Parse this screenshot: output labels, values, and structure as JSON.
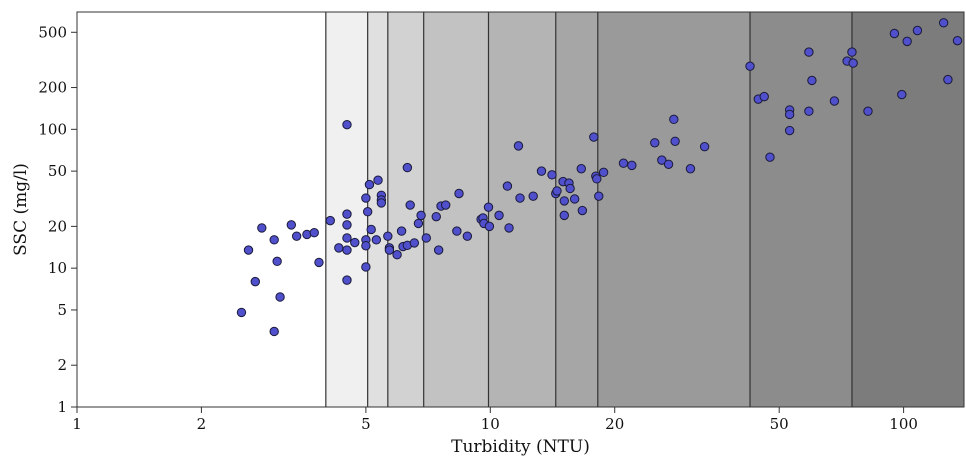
{
  "chart_data": {
    "type": "scatter",
    "title": "",
    "xlabel": "Turbidity (NTU)",
    "ylabel": "SSC (mg/l)",
    "x_scale": "log",
    "y_scale": "log",
    "xlim": [
      1,
      140
    ],
    "ylim": [
      1,
      700
    ],
    "x_ticks": [
      1,
      2,
      5,
      10,
      20,
      50,
      100
    ],
    "x_tick_labels": [
      "1",
      "2",
      "5",
      "10",
      "20",
      "50",
      "100"
    ],
    "y_ticks": [
      1,
      2,
      5,
      10,
      20,
      50,
      100,
      200,
      500
    ],
    "y_tick_labels": [
      "1",
      "2",
      "5",
      "10",
      "20",
      "50",
      "100",
      "200",
      "500"
    ],
    "grid": false,
    "legend": "none",
    "point_color": "#5050cc",
    "point_edge_color": "#1a1a3a",
    "bands": [
      {
        "from": 4.0,
        "to": 5.05,
        "color": "#f0f0f0"
      },
      {
        "from": 5.05,
        "to": 5.65,
        "color": "#e0e0e0"
      },
      {
        "from": 5.65,
        "to": 6.9,
        "color": "#d2d2d2"
      },
      {
        "from": 6.9,
        "to": 9.9,
        "color": "#c2c2c2"
      },
      {
        "from": 9.9,
        "to": 14.4,
        "color": "#b4b4b4"
      },
      {
        "from": 14.4,
        "to": 18.2,
        "color": "#a6a6a6"
      },
      {
        "from": 18.2,
        "to": 42.5,
        "color": "#9a9a9a"
      },
      {
        "from": 42.5,
        "to": 75,
        "color": "#8c8c8c"
      },
      {
        "from": 75,
        "to": 140,
        "color": "#7c7c7c"
      }
    ],
    "band_boundaries": [
      4.0,
      5.05,
      5.65,
      6.9,
      9.9,
      14.4,
      18.2,
      42.5,
      75
    ],
    "points": [
      [
        2.5,
        4.8
      ],
      [
        2.6,
        13.5
      ],
      [
        2.7,
        8
      ],
      [
        2.8,
        19.5
      ],
      [
        3.0,
        16
      ],
      [
        3.0,
        3.5
      ],
      [
        3.05,
        11.2
      ],
      [
        3.1,
        6.2
      ],
      [
        3.3,
        20.5
      ],
      [
        3.4,
        17
      ],
      [
        3.6,
        17.5
      ],
      [
        3.75,
        18
      ],
      [
        3.85,
        11
      ],
      [
        4.1,
        22
      ],
      [
        4.3,
        14
      ],
      [
        4.5,
        24.5
      ],
      [
        4.5,
        20.5
      ],
      [
        4.5,
        16.5
      ],
      [
        4.5,
        13.5
      ],
      [
        4.5,
        8.2
      ],
      [
        4.5,
        108
      ],
      [
        4.7,
        15.3
      ],
      [
        5.0,
        32
      ],
      [
        5.0,
        16
      ],
      [
        5.0,
        14.5
      ],
      [
        5.0,
        10.2
      ],
      [
        5.05,
        25.5
      ],
      [
        5.1,
        40
      ],
      [
        5.15,
        19
      ],
      [
        5.3,
        16
      ],
      [
        5.35,
        43
      ],
      [
        5.45,
        33.5
      ],
      [
        5.45,
        31
      ],
      [
        5.45,
        29.5
      ],
      [
        5.65,
        17
      ],
      [
        5.7,
        14
      ],
      [
        5.7,
        13.5
      ],
      [
        5.95,
        12.5
      ],
      [
        6.1,
        18.5
      ],
      [
        6.15,
        14.3
      ],
      [
        6.3,
        53
      ],
      [
        6.3,
        14.6
      ],
      [
        6.4,
        28.5
      ],
      [
        6.55,
        15.2
      ],
      [
        6.7,
        21
      ],
      [
        6.8,
        24
      ],
      [
        7.0,
        16.5
      ],
      [
        7.4,
        23.5
      ],
      [
        7.5,
        13.5
      ],
      [
        7.6,
        28
      ],
      [
        7.8,
        28.5
      ],
      [
        8.3,
        18.5
      ],
      [
        8.4,
        34.5
      ],
      [
        8.8,
        17
      ],
      [
        9.5,
        22.5
      ],
      [
        9.6,
        23
      ],
      [
        9.65,
        21
      ],
      [
        9.9,
        27.5
      ],
      [
        9.95,
        20
      ],
      [
        10.5,
        24
      ],
      [
        11.0,
        39
      ],
      [
        11.1,
        19.5
      ],
      [
        11.7,
        76
      ],
      [
        11.8,
        32
      ],
      [
        12.7,
        33
      ],
      [
        13.3,
        50
      ],
      [
        14.1,
        47
      ],
      [
        14.4,
        34.5
      ],
      [
        14.5,
        36
      ],
      [
        15.0,
        42
      ],
      [
        15.1,
        30.5
      ],
      [
        15.1,
        24
      ],
      [
        15.5,
        41
      ],
      [
        15.6,
        37.5
      ],
      [
        16.0,
        31.5
      ],
      [
        16.6,
        52
      ],
      [
        16.7,
        26
      ],
      [
        17.8,
        88
      ],
      [
        18.0,
        46
      ],
      [
        18.1,
        44
      ],
      [
        18.3,
        33
      ],
      [
        18.8,
        49
      ],
      [
        21.0,
        57
      ],
      [
        22.0,
        55
      ],
      [
        25.0,
        80
      ],
      [
        26.0,
        60
      ],
      [
        27.0,
        56
      ],
      [
        27.8,
        118
      ],
      [
        28.0,
        82
      ],
      [
        30.5,
        52
      ],
      [
        33.0,
        75
      ],
      [
        42.5,
        285
      ],
      [
        44.5,
        165
      ],
      [
        46.0,
        172
      ],
      [
        47.5,
        63
      ],
      [
        53.0,
        138
      ],
      [
        53.0,
        128
      ],
      [
        53.0,
        98
      ],
      [
        59.0,
        360
      ],
      [
        59.0,
        135
      ],
      [
        60.0,
        225
      ],
      [
        68.0,
        160
      ],
      [
        73.0,
        310
      ],
      [
        75.0,
        360
      ],
      [
        75.5,
        300
      ],
      [
        82.0,
        135
      ],
      [
        95.0,
        490
      ],
      [
        99.0,
        178
      ],
      [
        102.0,
        430
      ],
      [
        108.0,
        515
      ],
      [
        125.0,
        585
      ],
      [
        128.0,
        228
      ],
      [
        135.0,
        435
      ]
    ]
  }
}
